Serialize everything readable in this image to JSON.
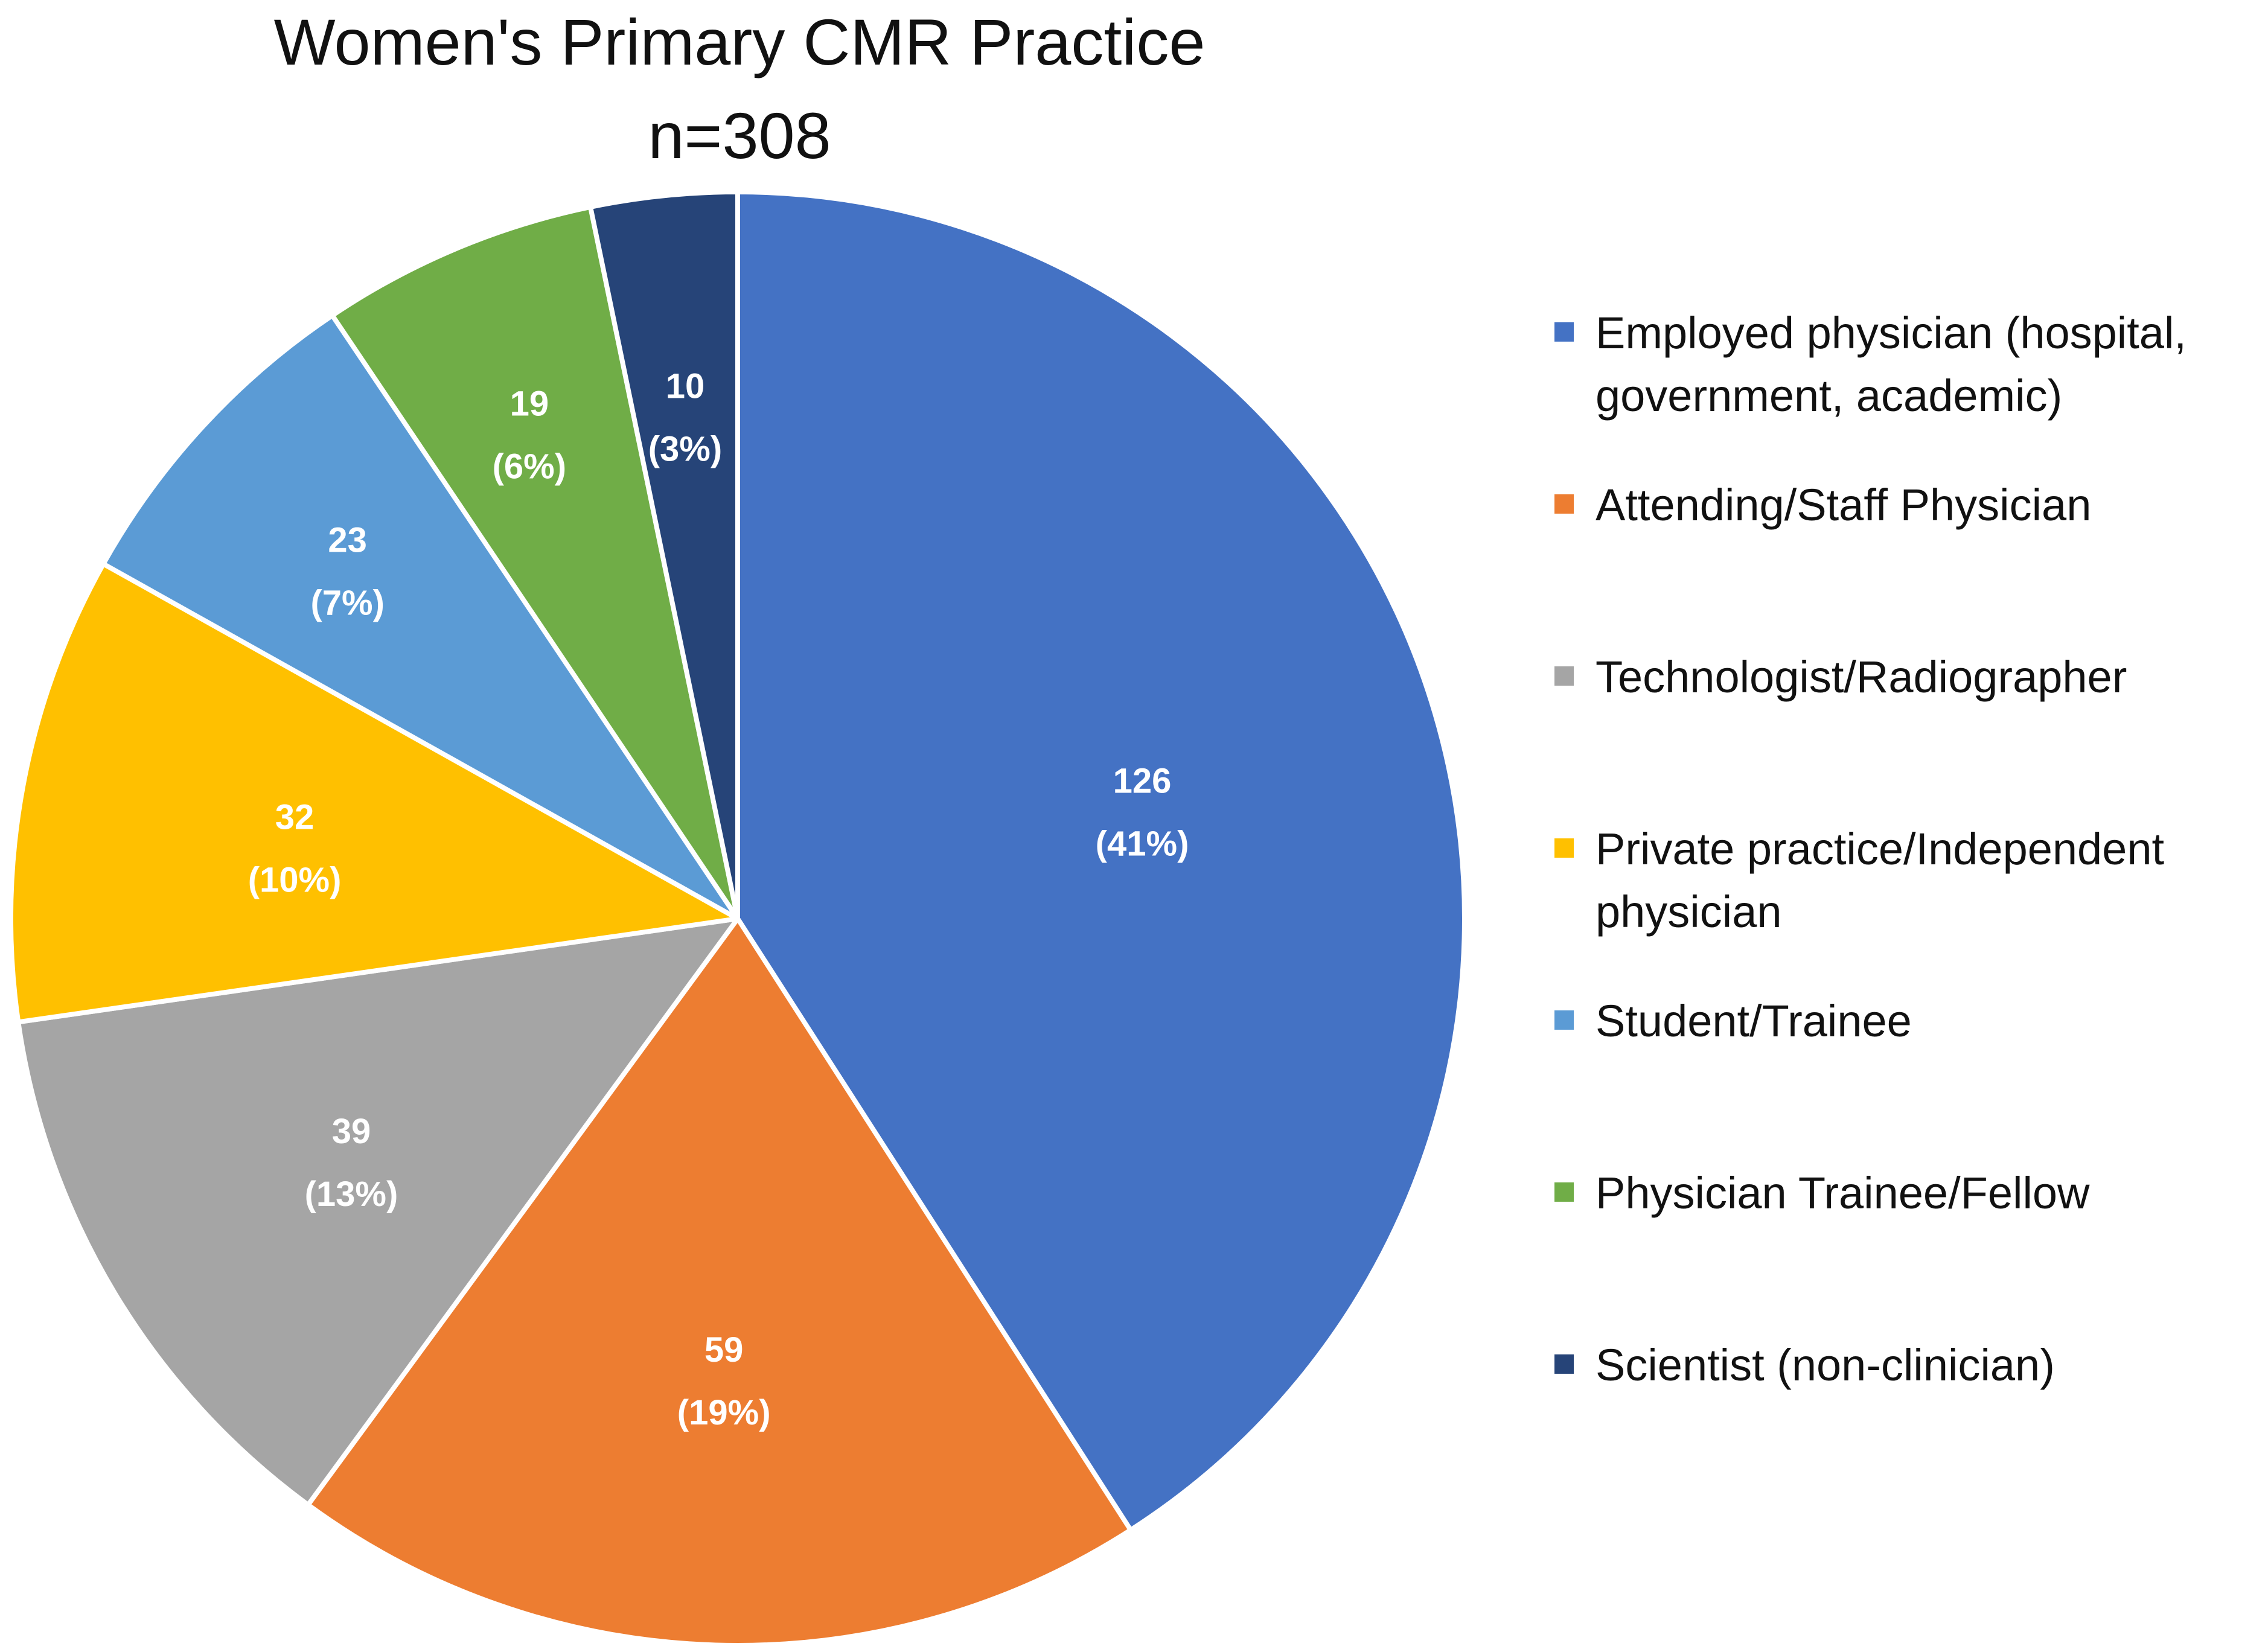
{
  "chart_data": {
    "type": "pie",
    "title": "Women's Primary CMR Practice",
    "subtitle": "n=308",
    "legend_position": "right",
    "slices": [
      {
        "label": "Employed physician (hospital, government, academic)",
        "value": 126,
        "percent_label": "(41%)",
        "color": "#4472C4"
      },
      {
        "label": "Attending/Staff Physician",
        "value": 59,
        "percent_label": "(19%)",
        "color": "#ED7D31"
      },
      {
        "label": "Technologist/Radiographer",
        "value": 39,
        "percent_label": "(13%)",
        "color": "#A5A5A5"
      },
      {
        "label": "Private practice/Independent physician",
        "value": 32,
        "percent_label": "(10%)",
        "color": "#FFC000"
      },
      {
        "label": "Student/Trainee",
        "value": 23,
        "percent_label": "(7%)",
        "color": "#5B9BD5"
      },
      {
        "label": "Physician Trainee/Fellow",
        "value": 19,
        "percent_label": "(6%)",
        "color": "#70AD47"
      },
      {
        "label": "Scientist (non-clinician)",
        "value": 10,
        "percent_label": "(3%)",
        "color": "#264478"
      }
    ]
  }
}
